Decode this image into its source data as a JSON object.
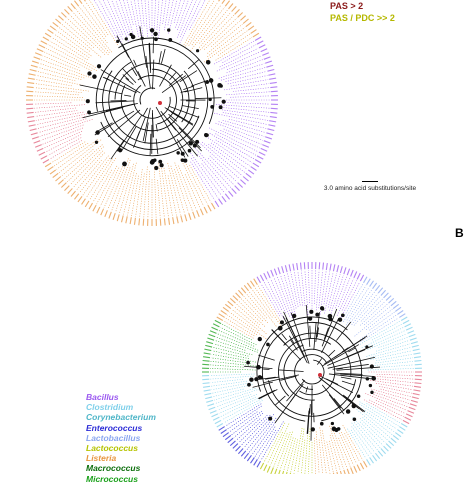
{
  "panels": [
    {
      "id": "A",
      "letter": ""
    },
    {
      "id": "B",
      "letter": "B"
    }
  ],
  "legend_top": {
    "pas_label": "PAS > 2",
    "pdc_label": "PAS / PDC >> 2",
    "pas_color": "#8b1a1a",
    "pdc_color": "#b5b800"
  },
  "scale_bar": {
    "label": "3.0 amino acid substitutions/site"
  },
  "genus_legend": [
    {
      "name": "Bacillus",
      "color": "#9b59f0"
    },
    {
      "name": "Clostridium",
      "color": "#7fd0ea"
    },
    {
      "name": "Corynebacterium",
      "color": "#4fb6c8"
    },
    {
      "name": "Enterococcus",
      "color": "#2b2bd6"
    },
    {
      "name": "Lactobacillus",
      "color": "#8aa6f0"
    },
    {
      "name": "Lactococcus",
      "color": "#b6c400"
    },
    {
      "name": "Listeria",
      "color": "#e89640"
    },
    {
      "name": "Macrococcus",
      "color": "#0c6e0c"
    },
    {
      "name": "Micrococcus",
      "color": "#1aa11a"
    }
  ],
  "tree_palette": [
    "#9b59f0",
    "#e89640",
    "#e0607a",
    "#7fd0ea",
    "#2b2bd6",
    "#b6c400",
    "#1aa11a",
    "#8aa6f0",
    "#4fb6c8",
    "#0c6e0c"
  ]
}
